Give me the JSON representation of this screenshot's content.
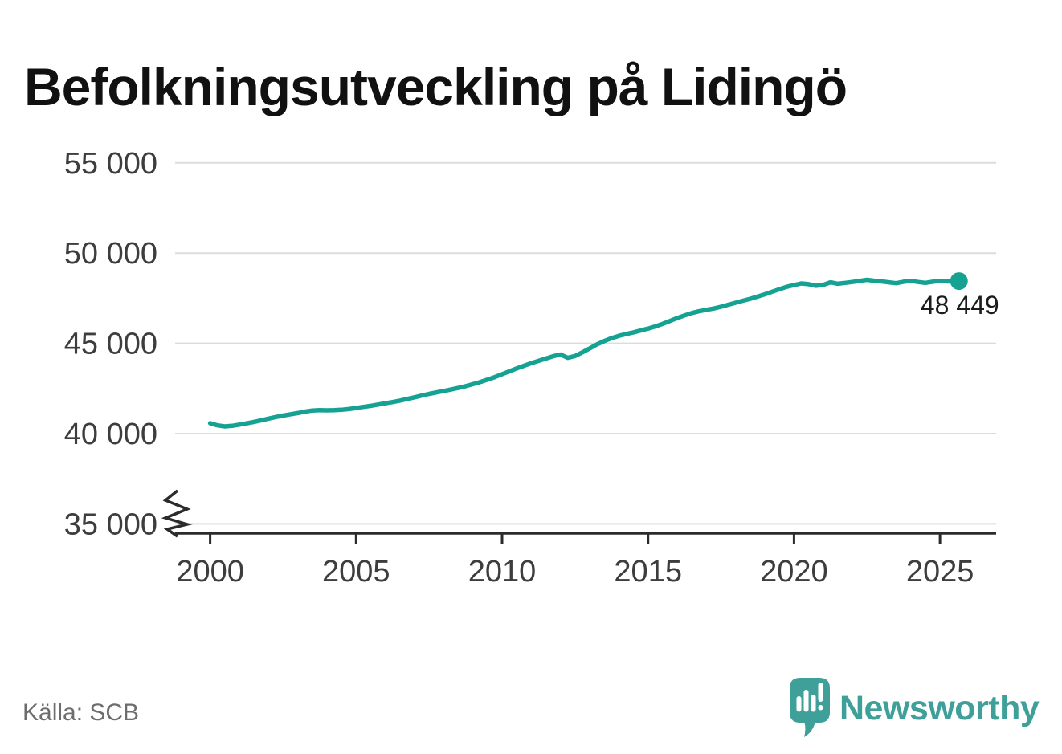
{
  "header": {
    "title": "Befolkningsutveckling på Lidingö"
  },
  "footer": {
    "source_label": "Källa: SCB"
  },
  "branding": {
    "name": "Newsworthy",
    "logo_icon": "newsworthy-bubble-barchart-icon",
    "logo_color": "#3fa099"
  },
  "colors": {
    "line": "#16a292",
    "grid": "#dcdcdc",
    "axis": "#2b2b2b",
    "tick_text": "#3d3d3d",
    "annotation_text": "#1c1c1c",
    "source_text": "#6d6d6d",
    "background": "#ffffff"
  },
  "chart_data": {
    "type": "line",
    "title": "Befolkningsutveckling på Lidingö",
    "xlabel": "",
    "ylabel": "",
    "grid": "horizontal",
    "legend": "none",
    "y_axis_break": true,
    "xlim": [
      1998.8,
      2027.0
    ],
    "ylim": [
      35000,
      56500
    ],
    "x_ticks": [
      {
        "value": 2000,
        "label": "2000"
      },
      {
        "value": 2005,
        "label": "2005"
      },
      {
        "value": 2010,
        "label": "2010"
      },
      {
        "value": 2015,
        "label": "2015"
      },
      {
        "value": 2020,
        "label": "2020"
      },
      {
        "value": 2025,
        "label": "2025"
      }
    ],
    "y_ticks": [
      {
        "value": 55000,
        "label": "55 000"
      },
      {
        "value": 50000,
        "label": "50 000"
      },
      {
        "value": 45000,
        "label": "45 000"
      },
      {
        "value": 40000,
        "label": "40 000"
      },
      {
        "value": 35000,
        "label": "35 000"
      }
    ],
    "end_point": {
      "x": 2025.65,
      "value": 48449,
      "label": "48 449"
    },
    "series": [
      {
        "color": "#16a292",
        "points": [
          [
            2000,
            40580
          ],
          [
            2000.25,
            40460
          ],
          [
            2000.5,
            40400
          ],
          [
            2000.75,
            40430
          ],
          [
            2001,
            40500
          ],
          [
            2001.25,
            40570
          ],
          [
            2001.5,
            40650
          ],
          [
            2001.75,
            40740
          ],
          [
            2002,
            40830
          ],
          [
            2002.25,
            40920
          ],
          [
            2002.5,
            41000
          ],
          [
            2002.75,
            41070
          ],
          [
            2003,
            41140
          ],
          [
            2003.25,
            41220
          ],
          [
            2003.5,
            41280
          ],
          [
            2003.75,
            41300
          ],
          [
            2004,
            41290
          ],
          [
            2004.25,
            41300
          ],
          [
            2004.5,
            41320
          ],
          [
            2004.75,
            41360
          ],
          [
            2005,
            41420
          ],
          [
            2005.25,
            41480
          ],
          [
            2005.5,
            41540
          ],
          [
            2005.75,
            41610
          ],
          [
            2006,
            41680
          ],
          [
            2006.25,
            41750
          ],
          [
            2006.5,
            41830
          ],
          [
            2006.75,
            41920
          ],
          [
            2007,
            42010
          ],
          [
            2007.25,
            42110
          ],
          [
            2007.5,
            42200
          ],
          [
            2007.75,
            42280
          ],
          [
            2008,
            42360
          ],
          [
            2008.25,
            42440
          ],
          [
            2008.5,
            42530
          ],
          [
            2008.75,
            42630
          ],
          [
            2009,
            42740
          ],
          [
            2009.25,
            42860
          ],
          [
            2009.5,
            42990
          ],
          [
            2009.75,
            43130
          ],
          [
            2010,
            43290
          ],
          [
            2010.25,
            43450
          ],
          [
            2010.5,
            43610
          ],
          [
            2010.75,
            43760
          ],
          [
            2011,
            43900
          ],
          [
            2011.25,
            44030
          ],
          [
            2011.5,
            44160
          ],
          [
            2011.75,
            44290
          ],
          [
            2012,
            44380
          ],
          [
            2012.25,
            44200
          ],
          [
            2012.5,
            44300
          ],
          [
            2012.75,
            44500
          ],
          [
            2013,
            44720
          ],
          [
            2013.25,
            44940
          ],
          [
            2013.5,
            45130
          ],
          [
            2013.75,
            45290
          ],
          [
            2014,
            45420
          ],
          [
            2014.25,
            45520
          ],
          [
            2014.5,
            45610
          ],
          [
            2014.75,
            45710
          ],
          [
            2015,
            45820
          ],
          [
            2015.25,
            45940
          ],
          [
            2015.5,
            46080
          ],
          [
            2015.75,
            46240
          ],
          [
            2016,
            46400
          ],
          [
            2016.25,
            46550
          ],
          [
            2016.5,
            46680
          ],
          [
            2016.75,
            46780
          ],
          [
            2017,
            46860
          ],
          [
            2017.25,
            46930
          ],
          [
            2017.5,
            47030
          ],
          [
            2017.75,
            47140
          ],
          [
            2018,
            47250
          ],
          [
            2018.25,
            47360
          ],
          [
            2018.5,
            47470
          ],
          [
            2018.75,
            47590
          ],
          [
            2019,
            47720
          ],
          [
            2019.25,
            47860
          ],
          [
            2019.5,
            48000
          ],
          [
            2019.75,
            48130
          ],
          [
            2020,
            48230
          ],
          [
            2020.25,
            48320
          ],
          [
            2020.5,
            48280
          ],
          [
            2020.75,
            48190
          ],
          [
            2021,
            48240
          ],
          [
            2021.25,
            48380
          ],
          [
            2021.5,
            48300
          ],
          [
            2021.75,
            48350
          ],
          [
            2022,
            48400
          ],
          [
            2022.25,
            48460
          ],
          [
            2022.5,
            48520
          ],
          [
            2022.75,
            48470
          ],
          [
            2023,
            48430
          ],
          [
            2023.25,
            48380
          ],
          [
            2023.5,
            48330
          ],
          [
            2023.75,
            48410
          ],
          [
            2024,
            48460
          ],
          [
            2024.25,
            48400
          ],
          [
            2024.5,
            48350
          ],
          [
            2024.75,
            48410
          ],
          [
            2025,
            48460
          ],
          [
            2025.25,
            48430
          ],
          [
            2025.5,
            48440
          ],
          [
            2025.65,
            48449
          ]
        ]
      }
    ]
  }
}
